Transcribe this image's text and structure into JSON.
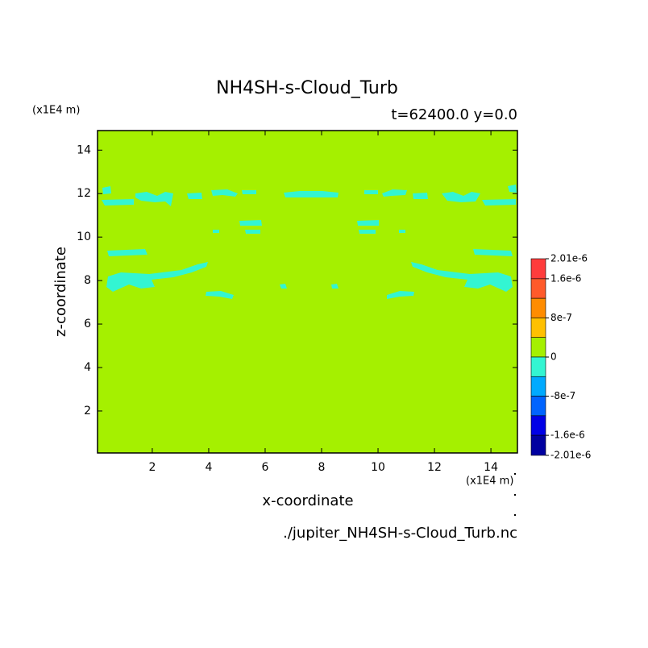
{
  "chart_data": {
    "type": "contour",
    "title": "NH4SH-s-Cloud_Turb",
    "subtitle": "t=62400.0 y=0.0",
    "x_label": "x-coordinate",
    "y_label": "z-coordinate",
    "x_unit": "(x1E4 m)",
    "y_unit": "(x1E4 m)",
    "footer": "./jupiter_NH4SH-s-Cloud_Turb.nc",
    "xlim": [
      0.06,
      14.94
    ],
    "xticks": [
      2,
      4,
      6,
      8,
      10,
      12,
      14
    ],
    "ylim": [
      0.07,
      14.9
    ],
    "yticks": [
      2,
      4,
      6,
      8,
      10,
      12,
      14
    ],
    "background_color": "#a5f000",
    "region_color": "#33f5d2",
    "colorbar": {
      "bounds": [
        2.01e-06,
        1.6e-06,
        1.2e-06,
        8e-07,
        4e-07,
        0,
        -4e-07,
        -8e-07,
        -1.2e-06,
        -1.6e-06,
        -2.01e-06
      ],
      "colors": [
        "#ff3c3c",
        "#ff5a2a",
        "#ff8c00",
        "#ffc000",
        "#a5f000",
        "#33f5d2",
        "#00aaff",
        "#0064ff",
        "#0000e6",
        "#0000a0"
      ],
      "ticks": [
        {
          "value": 2.01e-06,
          "label": "2.01e-6"
        },
        {
          "value": 1.6e-06,
          "label": "1.6e-6"
        },
        {
          "value": 8e-07,
          "label": "8e-7"
        },
        0,
        {
          "value": -8e-07,
          "label": "-8e-7"
        },
        {
          "value": -1.6e-06,
          "label": "-1.6e-6"
        },
        {
          "value": -2.01e-06,
          "label": "-2.01e-6"
        }
      ]
    }
  }
}
